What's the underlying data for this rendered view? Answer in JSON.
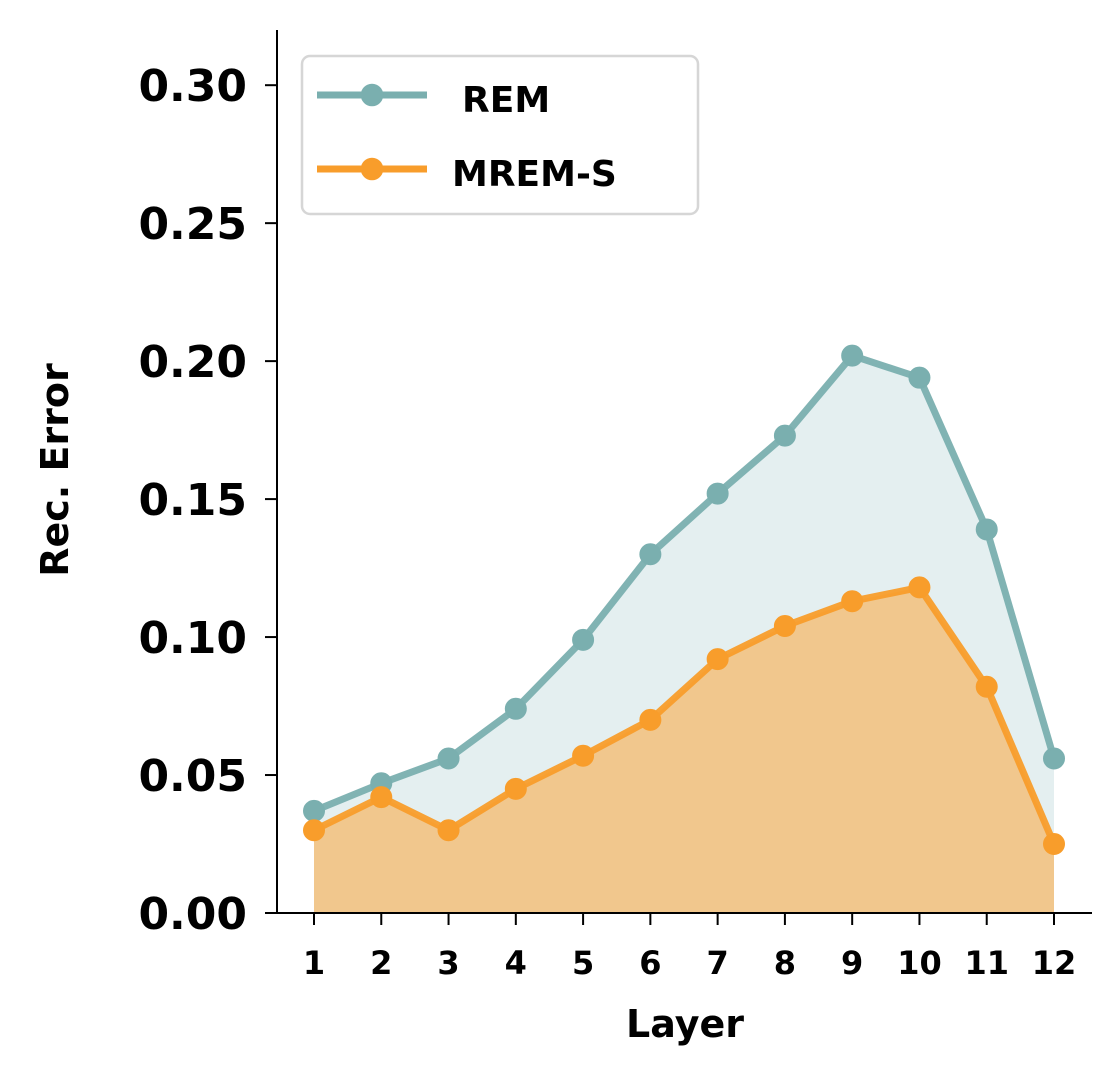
{
  "chart_data": {
    "type": "line",
    "title": "",
    "xlabel": "Layer",
    "ylabel": "Rec. Error",
    "x": [
      1,
      2,
      3,
      4,
      5,
      6,
      7,
      8,
      9,
      10,
      11,
      12
    ],
    "xticks": [
      "1",
      "2",
      "3",
      "4",
      "5",
      "6",
      "7",
      "8",
      "9",
      "10",
      "11",
      "12"
    ],
    "ylim": [
      0,
      0.32
    ],
    "yticks": [
      "0.00",
      "0.05",
      "0.10",
      "0.15",
      "0.20",
      "0.25",
      "0.30"
    ],
    "ytick_values": [
      0,
      0.05,
      0.1,
      0.15,
      0.2,
      0.25,
      0.3
    ],
    "grid": false,
    "legend_position": "top-left",
    "series": [
      {
        "name": "REM",
        "color": "#7aafaf",
        "fill_color": "#e4eff0",
        "values": [
          0.037,
          0.047,
          0.056,
          0.074,
          0.099,
          0.13,
          0.152,
          0.173,
          0.202,
          0.194,
          0.139,
          0.056
        ]
      },
      {
        "name": "MREM-S",
        "color": "#f89d2b",
        "fill_color": "#f1c78d",
        "values": [
          0.03,
          0.042,
          0.03,
          0.045,
          0.057,
          0.07,
          0.092,
          0.104,
          0.113,
          0.118,
          0.082,
          0.025
        ]
      }
    ]
  }
}
